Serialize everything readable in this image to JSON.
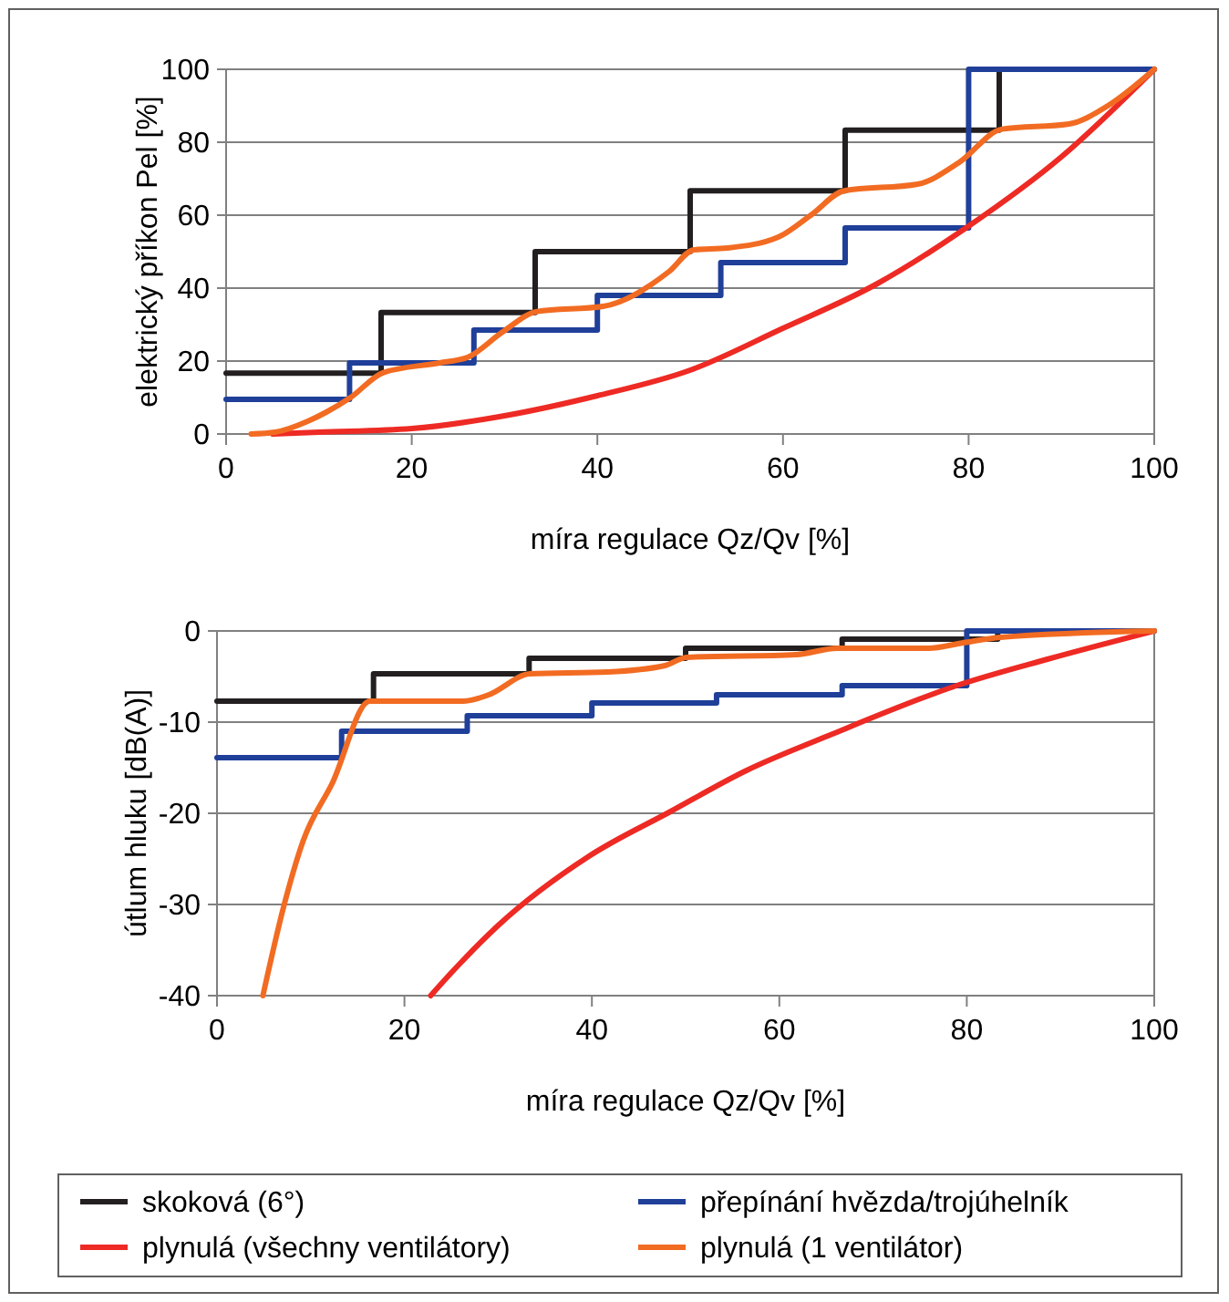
{
  "chart_data": [
    {
      "type": "line",
      "xlabel": "míra regulace Qz/Qv  [%]",
      "ylabel": "elektrický příkon Pel  [%]",
      "xlim": [
        0,
        100
      ],
      "ylim": [
        0,
        100
      ],
      "xticks": [
        0,
        20,
        40,
        60,
        80,
        100
      ],
      "yticks": [
        0,
        20,
        40,
        60,
        80,
        100
      ],
      "grid": "y",
      "legend": false,
      "series": [
        {
          "type": "step",
          "color": "#231f20",
          "x": [
            0,
            16.7,
            33.3,
            50,
            66.7,
            83.3,
            100
          ],
          "values": [
            16.7,
            33.3,
            50,
            66.7,
            83.3,
            100,
            100
          ]
        },
        {
          "type": "step",
          "color": "#1f3f99",
          "x": [
            0,
            13.3,
            26.7,
            40,
            53.3,
            66.7,
            80,
            100
          ],
          "values": [
            9.5,
            19.5,
            28.5,
            38,
            47,
            56.5,
            100,
            100
          ]
        },
        {
          "color": "#ee2a24",
          "x": [
            5,
            10,
            20,
            30,
            40,
            50,
            60,
            70,
            80,
            90,
            100
          ],
          "values": [
            0,
            0.5,
            1.5,
            5,
            10.5,
            17.5,
            29,
            41,
            57,
            76,
            100
          ]
        },
        {
          "color": "#f26b22",
          "x": [
            2.7,
            5.3,
            8.8,
            10.8,
            13.4,
            16.9,
            23,
            26,
            29.8,
            33.5,
            40.6,
            47.7,
            50.4,
            54,
            59.5,
            63,
            66.6,
            74.5,
            79,
            83.6,
            90.8,
            95,
            100
          ],
          "values": [
            0,
            0.5,
            3.5,
            6,
            10,
            16.8,
            19.5,
            21,
            28,
            33.6,
            35,
            44.5,
            50.5,
            51,
            54,
            60,
            66.7,
            68.5,
            74.5,
            83.6,
            85,
            90,
            100
          ]
        }
      ]
    },
    {
      "type": "line",
      "xlabel": "míra regulace Qz/Qv  [%]",
      "ylabel": "útlum hluku  [dB(A)]",
      "xlim": [
        0,
        100
      ],
      "ylim": [
        -40,
        0
      ],
      "xticks": [
        0,
        20,
        40,
        60,
        80,
        100
      ],
      "yticks": [
        -40,
        -30,
        -20,
        -10,
        0
      ],
      "grid": "y",
      "legend": "bottom",
      "series": [
        {
          "name": "skoková (6°)",
          "type": "step",
          "color": "#231f20",
          "x": [
            0,
            16.7,
            33.3,
            50,
            66.7,
            83.3,
            100
          ],
          "values": [
            -7.7,
            -4.7,
            -3,
            -1.9,
            -0.9,
            0,
            0
          ]
        },
        {
          "name": "přepínání hvězda/trojúhelník",
          "type": "step",
          "color": "#1f3f99",
          "x": [
            0,
            13.3,
            26.7,
            40,
            53.3,
            66.7,
            80,
            100
          ],
          "values": [
            -13.9,
            -11,
            -9.3,
            -7.9,
            -7,
            -6,
            0,
            0
          ]
        },
        {
          "name": "plynulá (všechny ventilátory)",
          "color": "#ee2a24",
          "x": [
            22.8,
            24.9,
            30,
            39.7,
            48.4,
            56.5,
            65.2,
            79.2,
            88.6,
            100
          ],
          "values": [
            -40,
            -37.6,
            -32.3,
            -24.7,
            -19.8,
            -15.3,
            -11.5,
            -5.9,
            -3.1,
            0
          ]
        },
        {
          "name": "plynulá (1 ventilátor)",
          "color": "#f26b22",
          "x": [
            4.9,
            7.2,
            9.2,
            12.3,
            16.3,
            26.3,
            29,
            33.4,
            41.7,
            47.8,
            50.1,
            61.8,
            66.2,
            75.9,
            79.6,
            83.6,
            100
          ],
          "values": [
            -40,
            -29.9,
            -23,
            -16.7,
            -7.7,
            -7.7,
            -7,
            -4.7,
            -4.5,
            -3.8,
            -2.9,
            -2.6,
            -1.9,
            -1.9,
            -1.3,
            -0.7,
            0
          ]
        }
      ]
    }
  ]
}
